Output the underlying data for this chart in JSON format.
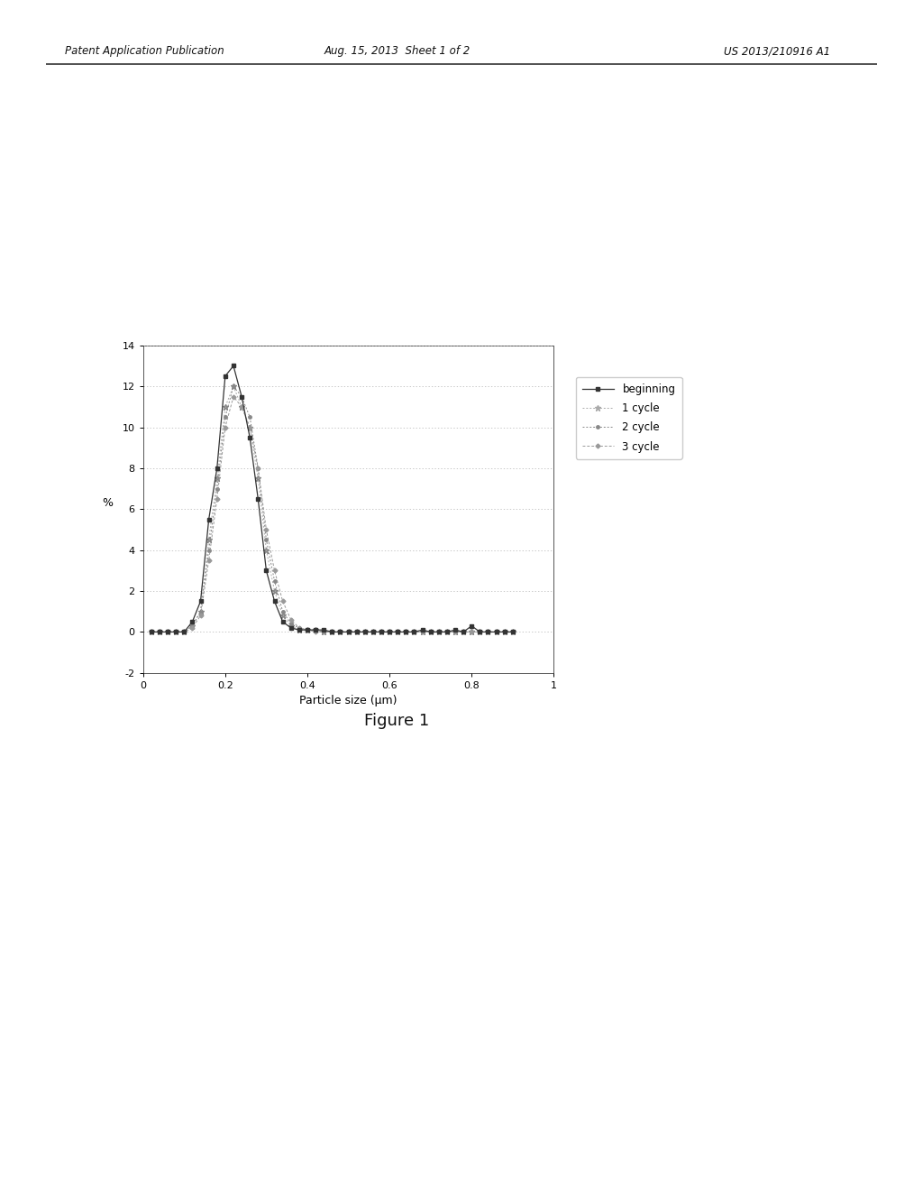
{
  "title": "Figure 1",
  "xlabel": "Particle size (μm)",
  "ylabel": "%",
  "xlim": [
    0,
    1
  ],
  "ylim": [
    -2,
    14
  ],
  "yticks": [
    -2,
    0,
    2,
    4,
    6,
    8,
    10,
    12,
    14
  ],
  "xticks": [
    0,
    0.2,
    0.4,
    0.6,
    0.8,
    1
  ],
  "xtick_labels": [
    "0",
    "0.2",
    "0.4",
    "0.6",
    "0.8",
    "1"
  ],
  "legend_labels": [
    "beginning",
    "1 cycle",
    "2 cycle",
    "3 cycle"
  ],
  "bg_color": "#ffffff",
  "header_left": "Patent Application Publication",
  "header_mid": "Aug. 15, 2013  Sheet 1 of 2",
  "header_right": "US 2013/210916 A1",
  "particle_sizes": [
    0.02,
    0.04,
    0.06,
    0.08,
    0.1,
    0.12,
    0.14,
    0.16,
    0.18,
    0.2,
    0.22,
    0.24,
    0.26,
    0.28,
    0.3,
    0.32,
    0.34,
    0.36,
    0.38,
    0.4,
    0.42,
    0.44,
    0.46,
    0.48,
    0.5,
    0.52,
    0.54,
    0.56,
    0.58,
    0.6,
    0.62,
    0.64,
    0.66,
    0.68,
    0.7,
    0.72,
    0.74,
    0.76,
    0.78,
    0.8,
    0.82,
    0.84,
    0.86,
    0.88,
    0.9
  ],
  "beginning": [
    0.0,
    0.0,
    0.0,
    0.0,
    0.0,
    0.5,
    1.5,
    5.5,
    8.0,
    12.5,
    13.0,
    11.5,
    9.5,
    6.5,
    3.0,
    1.5,
    0.5,
    0.2,
    0.1,
    0.1,
    0.1,
    0.1,
    0.0,
    0.0,
    0.0,
    0.0,
    0.0,
    0.0,
    0.0,
    0.0,
    0.0,
    0.0,
    0.0,
    0.1,
    0.0,
    0.0,
    0.0,
    0.1,
    0.0,
    0.3,
    0.0,
    0.0,
    0.0,
    0.0,
    0.0
  ],
  "cycle1": [
    0.0,
    0.0,
    0.0,
    0.0,
    0.0,
    0.3,
    1.0,
    4.5,
    7.5,
    11.0,
    12.0,
    11.0,
    10.0,
    7.5,
    4.0,
    2.0,
    0.8,
    0.3,
    0.1,
    0.1,
    0.1,
    0.0,
    0.0,
    0.0,
    0.0,
    0.0,
    0.0,
    0.0,
    0.0,
    0.0,
    0.0,
    0.0,
    0.0,
    0.0,
    0.0,
    0.0,
    0.0,
    0.0,
    0.0,
    0.0,
    0.0,
    0.0,
    0.0,
    0.0,
    0.0
  ],
  "cycle2": [
    0.0,
    0.0,
    0.0,
    0.0,
    0.0,
    0.3,
    1.0,
    4.0,
    7.0,
    10.5,
    12.0,
    11.5,
    10.5,
    8.0,
    4.5,
    2.5,
    1.0,
    0.4,
    0.2,
    0.1,
    0.1,
    0.0,
    0.0,
    0.0,
    0.0,
    0.0,
    0.0,
    0.0,
    0.0,
    0.0,
    0.0,
    0.0,
    0.0,
    0.0,
    0.0,
    0.0,
    0.0,
    0.0,
    0.0,
    0.0,
    0.0,
    0.0,
    0.0,
    0.0,
    0.0
  ],
  "cycle3": [
    0.0,
    0.0,
    0.0,
    0.0,
    0.0,
    0.2,
    0.8,
    3.5,
    6.5,
    10.0,
    11.5,
    11.0,
    10.0,
    8.0,
    5.0,
    3.0,
    1.5,
    0.6,
    0.2,
    0.1,
    0.0,
    0.0,
    0.0,
    0.0,
    0.0,
    0.0,
    0.0,
    0.0,
    0.0,
    0.0,
    0.0,
    0.0,
    0.0,
    0.0,
    0.0,
    0.0,
    0.0,
    0.0,
    0.0,
    0.0,
    0.0,
    0.0,
    0.0,
    0.0,
    0.0
  ]
}
